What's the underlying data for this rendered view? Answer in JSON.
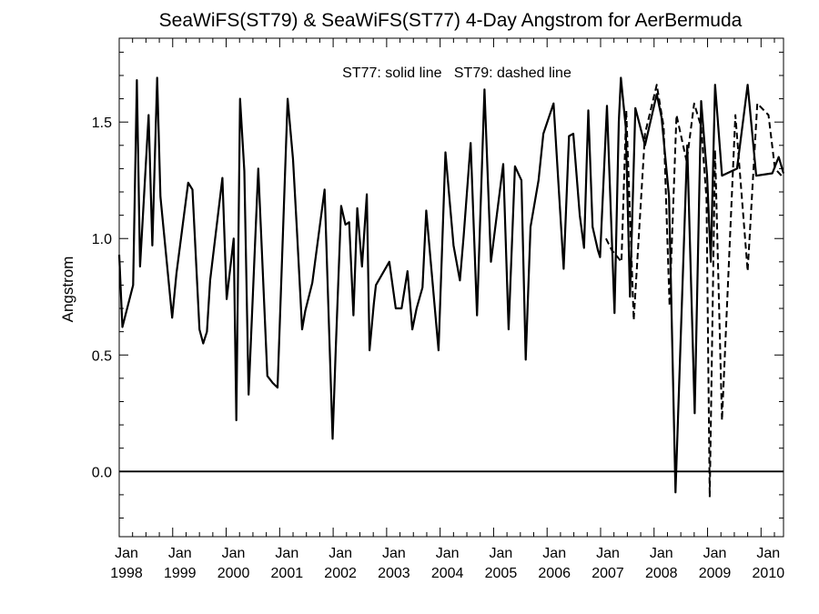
{
  "chart_data": {
    "type": "line",
    "title": "SeaWiFS(ST79) & SeaWiFS(ST77) 4-Day Angstrom for AerBermuda",
    "annotation": "ST77: solid line   ST79: dashed line",
    "ylabel": "Angstrom",
    "xlabel": "",
    "xlim": [
      1998.0,
      2010.42
    ],
    "ylim": [
      -0.28,
      1.86
    ],
    "y_ticks": [
      0.0,
      0.5,
      1.0,
      1.5
    ],
    "y_tick_labels": [
      "0.0",
      "0.5",
      "1.0",
      "1.5"
    ],
    "x_ticks": [
      1998,
      1999,
      2000,
      2001,
      2002,
      2003,
      2004,
      2005,
      2006,
      2007,
      2008,
      2009,
      2010
    ],
    "x_tick_labels_month": [
      "Jan",
      "Jan",
      "Jan",
      "Jan",
      "Jan",
      "Jan",
      "Jan",
      "Jan",
      "Jan",
      "Jan",
      "Jan",
      "Jan",
      "Jan"
    ],
    "x_tick_labels_year": [
      "1998",
      "1999",
      "2000",
      "2001",
      "2002",
      "2003",
      "2004",
      "2005",
      "2006",
      "2007",
      "2008",
      "2009",
      "2010"
    ],
    "reference_line_y": 0.0,
    "grid": false,
    "series": [
      {
        "name": "ST77",
        "style": "solid",
        "x": [
          1998.0,
          1998.06,
          1998.26,
          1998.33,
          1998.39,
          1998.55,
          1998.62,
          1998.71,
          1998.77,
          1998.99,
          1999.07,
          1999.29,
          1999.37,
          1999.5,
          1999.57,
          1999.64,
          1999.7,
          1999.93,
          2000.01,
          2000.14,
          2000.19,
          2000.26,
          2000.34,
          2000.42,
          2000.6,
          2000.77,
          2000.87,
          2000.96,
          2001.15,
          2001.25,
          2001.32,
          2001.42,
          2001.48,
          2001.61,
          2001.84,
          2001.99,
          2002.05,
          2002.15,
          2002.23,
          2002.3,
          2002.38,
          2002.45,
          2002.54,
          2002.63,
          2002.68,
          2002.76,
          2002.8,
          2003.05,
          2003.17,
          2003.28,
          2003.39,
          2003.48,
          2003.56,
          2003.67,
          2003.74,
          2003.97,
          2004.1,
          2004.25,
          2004.37,
          2004.44,
          2004.57,
          2004.69,
          2004.83,
          2004.95,
          2005.18,
          2005.28,
          2005.4,
          2005.52,
          2005.6,
          2005.69,
          2005.84,
          2005.93,
          2006.12,
          2006.31,
          2006.41,
          2006.49,
          2006.61,
          2006.69,
          2006.77,
          2006.85,
          2006.95,
          2006.99,
          2007.12,
          2007.26,
          2007.34,
          2007.38,
          2007.47,
          2007.55,
          2007.65,
          2007.83,
          2008.05,
          2008.14,
          2008.28,
          2008.4,
          2008.62,
          2008.76,
          2008.88,
          2008.99,
          2009.06,
          2009.14,
          2009.27,
          2009.55,
          2009.75,
          2009.91,
          2010.21,
          2010.33,
          2010.42
        ],
        "y": [
          0.93,
          0.62,
          0.8,
          1.68,
          0.88,
          1.53,
          0.97,
          1.69,
          1.18,
          0.66,
          0.85,
          1.24,
          1.21,
          0.61,
          0.55,
          0.6,
          0.82,
          1.26,
          0.74,
          1.0,
          0.22,
          1.6,
          1.29,
          0.33,
          1.3,
          0.41,
          0.38,
          0.36,
          1.6,
          1.34,
          1.05,
          0.61,
          0.69,
          0.81,
          1.21,
          0.14,
          0.53,
          1.14,
          1.06,
          1.07,
          0.67,
          1.13,
          0.88,
          1.19,
          0.52,
          0.72,
          0.8,
          0.9,
          0.7,
          0.7,
          0.86,
          0.61,
          0.7,
          0.79,
          1.12,
          0.52,
          1.37,
          0.97,
          0.82,
          1.01,
          1.41,
          0.67,
          1.64,
          0.9,
          1.32,
          0.61,
          1.31,
          1.25,
          0.48,
          1.05,
          1.25,
          1.45,
          1.58,
          0.87,
          1.44,
          1.45,
          1.1,
          0.96,
          1.55,
          1.05,
          0.95,
          0.92,
          1.57,
          0.68,
          1.5,
          1.69,
          1.48,
          0.75,
          1.56,
          1.4,
          1.62,
          1.52,
          1.18,
          -0.09,
          1.4,
          0.25,
          1.59,
          1.27,
          0.9,
          1.66,
          1.27,
          1.3,
          1.66,
          1.27,
          1.28,
          1.35,
          1.28
        ]
      },
      {
        "name": "ST79",
        "style": "dashed",
        "x": [
          2007.1,
          2007.21,
          2007.39,
          2007.48,
          2007.62,
          2007.83,
          2008.05,
          2008.18,
          2008.29,
          2008.42,
          2008.61,
          2008.75,
          2008.88,
          2008.98,
          2009.04,
          2009.14,
          2009.27,
          2009.52,
          2009.75,
          2009.93,
          2010.14,
          2010.26,
          2010.42
        ],
        "y": [
          1.0,
          0.95,
          0.9,
          1.55,
          0.65,
          1.45,
          1.66,
          1.48,
          0.71,
          1.53,
          1.33,
          1.58,
          1.48,
          1.17,
          -0.11,
          1.38,
          0.22,
          1.53,
          0.86,
          1.58,
          1.53,
          1.3,
          1.26
        ]
      }
    ]
  }
}
